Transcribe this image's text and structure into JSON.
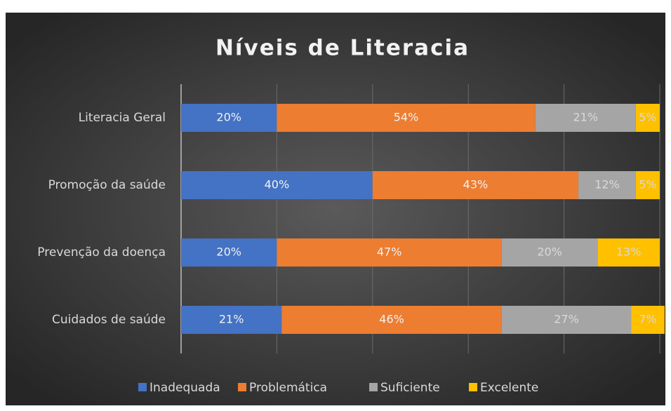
{
  "chart_data": {
    "type": "stacked-bar-horizontal",
    "title": "Níveis de Literacia",
    "categories": [
      "Literacia Geral",
      "Promoção da saúde",
      "Prevenção da doença",
      "Cuidados de saúde"
    ],
    "series": [
      {
        "name": "Inadequada",
        "color": "#4472c4",
        "values": [
          20,
          40,
          20,
          21
        ],
        "value_labels": [
          "20%",
          "40%",
          "20%",
          "21%"
        ]
      },
      {
        "name": "Problemática",
        "color": "#ed7d31",
        "values": [
          54,
          43,
          47,
          46
        ],
        "value_labels": [
          "54%",
          "43%",
          "47%",
          "46%"
        ]
      },
      {
        "name": "Suficiente",
        "color": "#a5a5a5",
        "values": [
          21,
          12,
          20,
          27
        ],
        "value_labels": [
          "21%",
          "12%",
          "20%",
          "27%"
        ]
      },
      {
        "name": "Excelente",
        "color": "#ffc000",
        "values": [
          5,
          5,
          13,
          7
        ],
        "value_labels": [
          "5%",
          "5%",
          "13%",
          "7%"
        ]
      }
    ],
    "xlim": [
      0,
      100
    ],
    "xticks": [
      0,
      20,
      40,
      60,
      80,
      100
    ],
    "grid": true,
    "legend": "bottom"
  }
}
